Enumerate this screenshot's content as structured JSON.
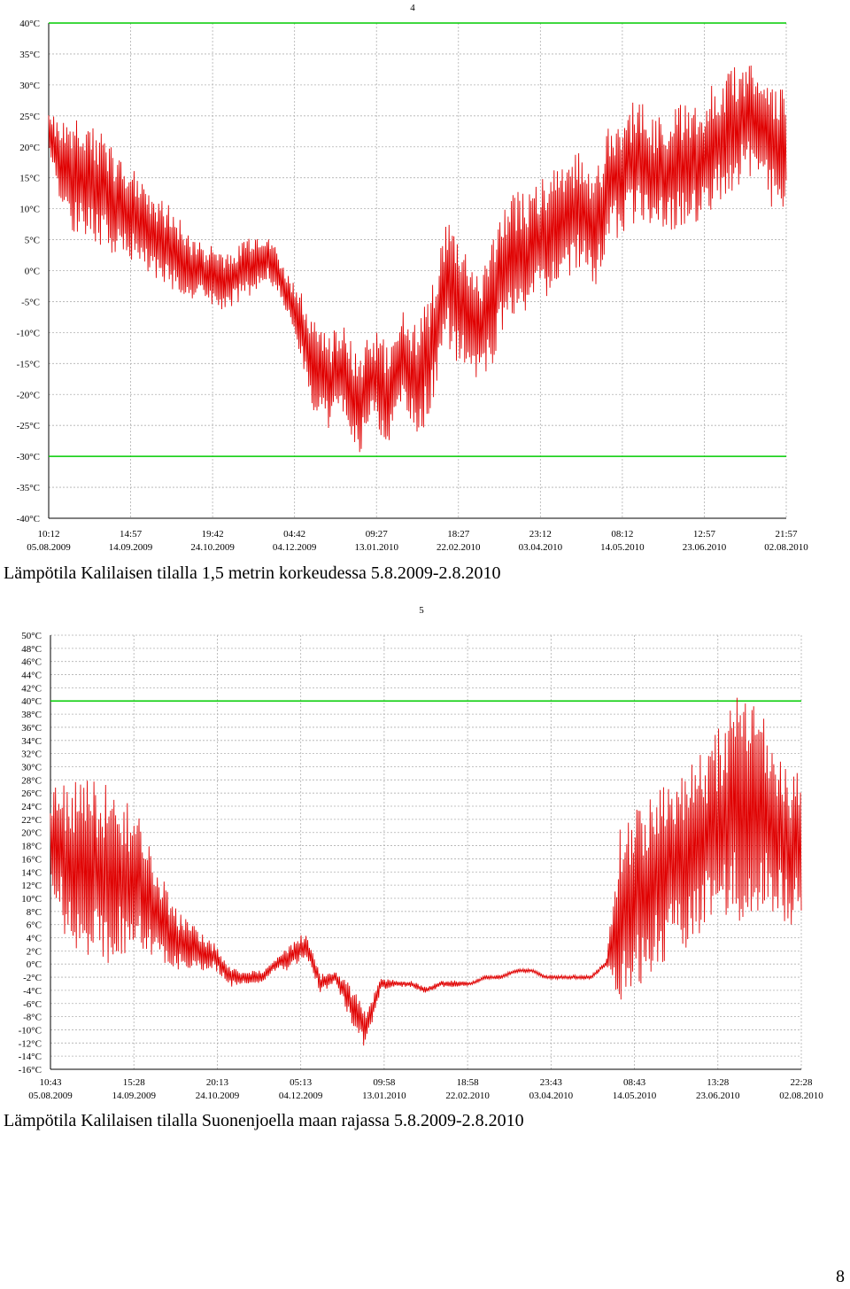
{
  "chart_data": [
    {
      "type": "line",
      "chart_number": "4",
      "caption": "Lämpötila Kalilaisen tilalla 1,5 metrin korkeudessa 5.8.2009-2.8.2010",
      "ylim": [
        -40,
        40
      ],
      "y_ticks": [
        "40°C",
        "35°C",
        "30°C",
        "25°C",
        "20°C",
        "15°C",
        "10°C",
        "5°C",
        "0°C",
        "-5°C",
        "-10°C",
        "-15°C",
        "-20°C",
        "-25°C",
        "-30°C",
        "-35°C",
        "-40°C"
      ],
      "x_ticks": [
        {
          "time": "10:12",
          "date": "05.08.2009"
        },
        {
          "time": "14:57",
          "date": "14.09.2009"
        },
        {
          "time": "19:42",
          "date": "24.10.2009"
        },
        {
          "time": "04:42",
          "date": "04.12.2009"
        },
        {
          "time": "09:27",
          "date": "13.01.2010"
        },
        {
          "time": "18:27",
          "date": "22.02.2010"
        },
        {
          "time": "23:12",
          "date": "03.04.2010"
        },
        {
          "time": "08:12",
          "date": "14.05.2010"
        },
        {
          "time": "12:57",
          "date": "23.06.2010"
        },
        {
          "time": "21:57",
          "date": "02.08.2010"
        }
      ],
      "reference_lines": [
        40,
        -30
      ],
      "colors": {
        "series": "#e00000",
        "reference": "#00cc00",
        "grid": "#b0b0b0",
        "axis": "#000000"
      },
      "grid": true,
      "series": [
        {
          "x": [
            0,
            0.02,
            0.04,
            0.06,
            0.08,
            0.1,
            0.12,
            0.14,
            0.16,
            0.18,
            0.2,
            0.22,
            0.24,
            0.26,
            0.28,
            0.3,
            0.32,
            0.34,
            0.36,
            0.38,
            0.4,
            0.42,
            0.44,
            0.46,
            0.48,
            0.5,
            0.52,
            0.54,
            0.56,
            0.58,
            0.6,
            0.62,
            0.64,
            0.66,
            0.68,
            0.7,
            0.72,
            0.74,
            0.76,
            0.78,
            0.8,
            0.82,
            0.84,
            0.86,
            0.88,
            0.9,
            0.92,
            0.94,
            0.96,
            0.98,
            1
          ],
          "mid": [
            22,
            16,
            15,
            14,
            12,
            10,
            9,
            6,
            4,
            2,
            0,
            -1,
            -2,
            0,
            1,
            2,
            -3,
            -8,
            -15,
            -18,
            -16,
            -22,
            -17,
            -20,
            -14,
            -18,
            -12,
            -2,
            -6,
            -10,
            -6,
            2,
            3,
            4,
            6,
            8,
            10,
            6,
            14,
            16,
            18,
            15,
            16,
            17,
            18,
            20,
            22,
            24,
            25,
            20,
            20
          ],
          "amp": [
            5,
            8,
            10,
            10,
            9,
            8,
            8,
            7,
            7,
            6,
            5,
            5,
            5,
            5,
            5,
            4,
            3,
            5,
            8,
            8,
            8,
            8,
            8,
            8,
            8,
            10,
            10,
            10,
            10,
            10,
            10,
            10,
            10,
            10,
            10,
            10,
            10,
            10,
            10,
            10,
            10,
            10,
            10,
            10,
            10,
            10,
            10,
            10,
            10,
            10,
            10
          ]
        }
      ]
    },
    {
      "type": "line",
      "chart_number": "5",
      "caption": "Lämpötila Kalilaisen tilalla Suonenjoella maan rajassa 5.8.2009-2.8.2010",
      "ylim": [
        -16,
        50
      ],
      "y_ticks": [
        "50°C",
        "48°C",
        "46°C",
        "44°C",
        "42°C",
        "40°C",
        "38°C",
        "36°C",
        "34°C",
        "32°C",
        "30°C",
        "28°C",
        "26°C",
        "24°C",
        "22°C",
        "20°C",
        "18°C",
        "16°C",
        "14°C",
        "12°C",
        "10°C",
        "8°C",
        "6°C",
        "4°C",
        "2°C",
        "0°C",
        "-2°C",
        "-4°C",
        "-6°C",
        "-8°C",
        "-10°C",
        "-12°C",
        "-14°C",
        "-16°C"
      ],
      "x_ticks": [
        {
          "time": "10:43",
          "date": "05.08.2009"
        },
        {
          "time": "15:28",
          "date": "14.09.2009"
        },
        {
          "time": "20:13",
          "date": "24.10.2009"
        },
        {
          "time": "05:13",
          "date": "04.12.2009"
        },
        {
          "time": "09:58",
          "date": "13.01.2010"
        },
        {
          "time": "18:58",
          "date": "22.02.2010"
        },
        {
          "time": "23:43",
          "date": "03.04.2010"
        },
        {
          "time": "08:43",
          "date": "14.05.2010"
        },
        {
          "time": "13:28",
          "date": "23.06.2010"
        },
        {
          "time": "22:28",
          "date": "02.08.2010"
        }
      ],
      "reference_lines": [
        40
      ],
      "colors": {
        "series": "#e00000",
        "reference": "#00cc00",
        "grid": "#b0b0b0",
        "axis": "#000000"
      },
      "grid": true,
      "series": [
        {
          "x": [
            0,
            0.02,
            0.04,
            0.06,
            0.08,
            0.1,
            0.12,
            0.14,
            0.16,
            0.18,
            0.2,
            0.22,
            0.24,
            0.26,
            0.28,
            0.3,
            0.32,
            0.34,
            0.36,
            0.38,
            0.4,
            0.42,
            0.44,
            0.46,
            0.48,
            0.5,
            0.52,
            0.54,
            0.56,
            0.58,
            0.6,
            0.62,
            0.64,
            0.66,
            0.68,
            0.7,
            0.72,
            0.74,
            0.76,
            0.78,
            0.8,
            0.82,
            0.84,
            0.86,
            0.88,
            0.9,
            0.92,
            0.94,
            0.96,
            0.98,
            1
          ],
          "mid": [
            20,
            16,
            14,
            14,
            14,
            13,
            12,
            8,
            4,
            3,
            2,
            1,
            -2,
            -2,
            -2,
            0,
            1,
            3,
            -3,
            -2,
            -6,
            -10,
            -3,
            -3,
            -3,
            -4,
            -3,
            -3,
            -3,
            -2,
            -2,
            -1,
            -1,
            -2,
            -2,
            -2,
            -2,
            0,
            8,
            10,
            12,
            14,
            15,
            18,
            20,
            22,
            24,
            24,
            22,
            18,
            18
          ],
          "amp": [
            8,
            12,
            14,
            14,
            14,
            12,
            10,
            8,
            6,
            4,
            3,
            2,
            1.5,
            1,
            1,
            1,
            2,
            2,
            1.5,
            1,
            3,
            3,
            1,
            0.5,
            0.5,
            0.5,
            0.5,
            0.5,
            0.3,
            0.3,
            0.3,
            0.3,
            0.3,
            0.3,
            0.3,
            0.3,
            0.3,
            0.5,
            14,
            14,
            14,
            14,
            14,
            14,
            14,
            16,
            18,
            16,
            14,
            12,
            12
          ]
        }
      ]
    }
  ],
  "page_number": "8"
}
